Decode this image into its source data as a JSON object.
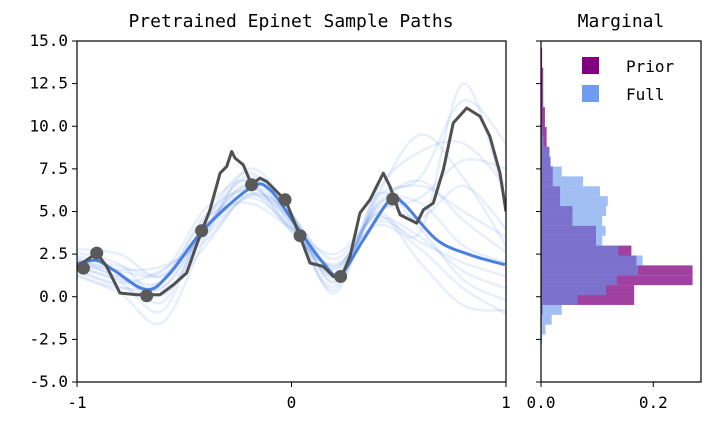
{
  "chart_data": [
    {
      "type": "line",
      "title": "Pretrained Epinet Sample Paths",
      "xlim": [
        -1,
        1
      ],
      "ylim": [
        -5,
        15
      ],
      "xticks": [
        "-1",
        "0",
        "1"
      ],
      "yticks": [
        "-5.0",
        "-2.5",
        "0.0",
        "2.5",
        "5.0",
        "7.5",
        "10.0",
        "12.5",
        "15.0"
      ],
      "grid": false,
      "colors": {
        "samples": "#6495ED",
        "mean": "#4a80e0",
        "truth": "#505050",
        "observations": "#5a5a5a"
      },
      "sample_x": [
        -1,
        -0.8,
        -0.6,
        -0.4,
        -0.2,
        0,
        0.2,
        0.4,
        0.6,
        0.8,
        1
      ],
      "sample_paths": [
        [
          1.5,
          0.6,
          0.2,
          3.0,
          6.0,
          4.8,
          0.8,
          5.5,
          6.5,
          5.0,
          3.5
        ],
        [
          2.4,
          1.8,
          1.5,
          5.2,
          6.8,
          3.8,
          1.9,
          4.2,
          2.8,
          0.5,
          -1.0
        ],
        [
          1.2,
          0.2,
          -1.5,
          3.5,
          7.5,
          4.9,
          0.2,
          6.2,
          8.5,
          9.0,
          6.5
        ],
        [
          2.8,
          2.5,
          1.2,
          4.6,
          5.5,
          4.0,
          2.5,
          4.6,
          3.5,
          1.5,
          0.5
        ],
        [
          1.8,
          1.0,
          0.5,
          4.0,
          6.4,
          4.3,
          1.2,
          5.4,
          5.5,
          3.0,
          2.0
        ],
        [
          2.2,
          1.4,
          -0.3,
          4.4,
          6.9,
          4.7,
          0.9,
          5.8,
          7.0,
          11.5,
          9.0
        ],
        [
          1.6,
          0.8,
          1.6,
          3.6,
          5.8,
          4.1,
          1.6,
          4.8,
          2.0,
          -0.5,
          -0.8
        ],
        [
          2.0,
          1.2,
          0.9,
          4.2,
          6.6,
          4.5,
          1.1,
          5.2,
          4.6,
          6.5,
          4.0
        ],
        [
          2.6,
          1.9,
          0.1,
          3.9,
          7.1,
          4.2,
          0.6,
          5.9,
          9.5,
          7.0,
          3.0
        ],
        [
          1.3,
          0.5,
          1.0,
          4.8,
          6.2,
          3.9,
          1.8,
          4.4,
          3.2,
          2.0,
          1.2
        ],
        [
          2.1,
          1.6,
          1.8,
          3.3,
          5.9,
          4.6,
          2.2,
          5.0,
          5.8,
          8.0,
          7.5
        ],
        [
          1.7,
          0.9,
          -0.8,
          4.5,
          7.3,
          4.4,
          0.4,
          6.0,
          4.0,
          1.0,
          -0.2
        ],
        [
          2.3,
          1.1,
          0.6,
          4.1,
          6.5,
          4.0,
          1.4,
          5.3,
          6.8,
          4.5,
          2.6
        ],
        [
          1.9,
          1.5,
          1.3,
          3.8,
          6.0,
          4.8,
          1.7,
          4.9,
          3.8,
          12.5,
          5.5
        ]
      ],
      "mean": {
        "x": [
          -1,
          -0.986,
          -0.908,
          -0.831,
          -0.675,
          -0.566,
          -0.411,
          -0.193,
          -0.1,
          0.024,
          0.148,
          0.226,
          0.335,
          0.459,
          0.521,
          0.677,
          0.832,
          0.995
        ],
        "y": [
          1.9,
          1.98,
          2.13,
          1.58,
          0.41,
          1.39,
          3.93,
          6.37,
          6.28,
          4.12,
          1.98,
          1.29,
          3.34,
          5.69,
          5.49,
          3.34,
          2.46,
          1.88
        ]
      },
      "truth": {
        "x": [
          -1,
          -0.986,
          -0.908,
          -0.862,
          -0.8,
          -0.722,
          -0.613,
          -0.551,
          -0.489,
          -0.434,
          -0.38,
          -0.333,
          -0.302,
          -0.279,
          -0.263,
          -0.225,
          -0.186,
          -0.147,
          -0.116,
          -0.054,
          -0.022,
          0.04,
          0.086,
          0.148,
          0.195,
          0.234,
          0.273,
          0.319,
          0.366,
          0.397,
          0.428,
          0.459,
          0.506,
          0.537,
          0.584,
          0.615,
          0.661,
          0.708,
          0.754,
          0.817,
          0.879,
          0.925,
          0.972,
          1.0
        ],
        "y": [
          1.7,
          1.88,
          2.56,
          1.78,
          0.22,
          0.12,
          0.12,
          0.7,
          1.39,
          3.34,
          5.1,
          7.25,
          7.64,
          8.52,
          8.13,
          7.74,
          6.57,
          6.96,
          6.76,
          5.98,
          5.49,
          3.54,
          1.98,
          1.78,
          1.19,
          1.19,
          2.37,
          4.91,
          5.69,
          6.47,
          7.25,
          6.47,
          4.81,
          4.61,
          4.32,
          5.1,
          5.49,
          7.45,
          10.19,
          11.07,
          10.58,
          9.4,
          7.25,
          5.0
        ]
      },
      "observations": {
        "x": [
          -0.97,
          -0.908,
          -0.675,
          -0.419,
          -0.186,
          -0.03,
          0.04,
          0.229,
          0.472
        ],
        "y": [
          1.68,
          2.56,
          0.06,
          3.87,
          6.57,
          5.69,
          3.58,
          1.19,
          5.73
        ]
      }
    },
    {
      "type": "bar",
      "orientation": "horizontal",
      "title": "Marginal",
      "xlim": [
        0,
        0.285
      ],
      "ylim": [
        -5,
        15
      ],
      "xticks": [
        "0.0",
        "0.2"
      ],
      "legend": {
        "position": "top-right",
        "entries": [
          "Prior",
          "Full"
        ]
      },
      "bin_start": -2.8,
      "bin_width": 0.58,
      "series": [
        {
          "name": "Prior",
          "color": "#800080",
          "values": [
            0,
            0,
            0,
            0.003,
            0.166,
            0.166,
            0.27,
            0.27,
            0.17,
            0.161,
            0.098,
            0.098,
            0.056,
            0.056,
            0.034,
            0.034,
            0.021,
            0.021,
            0.017,
            0.015,
            0.01,
            0.01,
            0.007,
            0.007,
            0.004,
            0.004,
            0.004,
            0.004,
            0.002,
            0.002
          ]
        },
        {
          "name": "Full",
          "color": "#6495ED",
          "values": [
            0.002,
            0.008,
            0.019,
            0.037,
            0.065,
            0.116,
            0.135,
            0.173,
            0.181,
            0.138,
            0.109,
            0.115,
            0.109,
            0.116,
            0.119,
            0.105,
            0.075,
            0.037,
            0.017,
            0.015,
            0.005,
            0.003,
            0,
            0,
            0,
            0,
            0,
            0,
            0,
            0
          ]
        }
      ]
    }
  ]
}
